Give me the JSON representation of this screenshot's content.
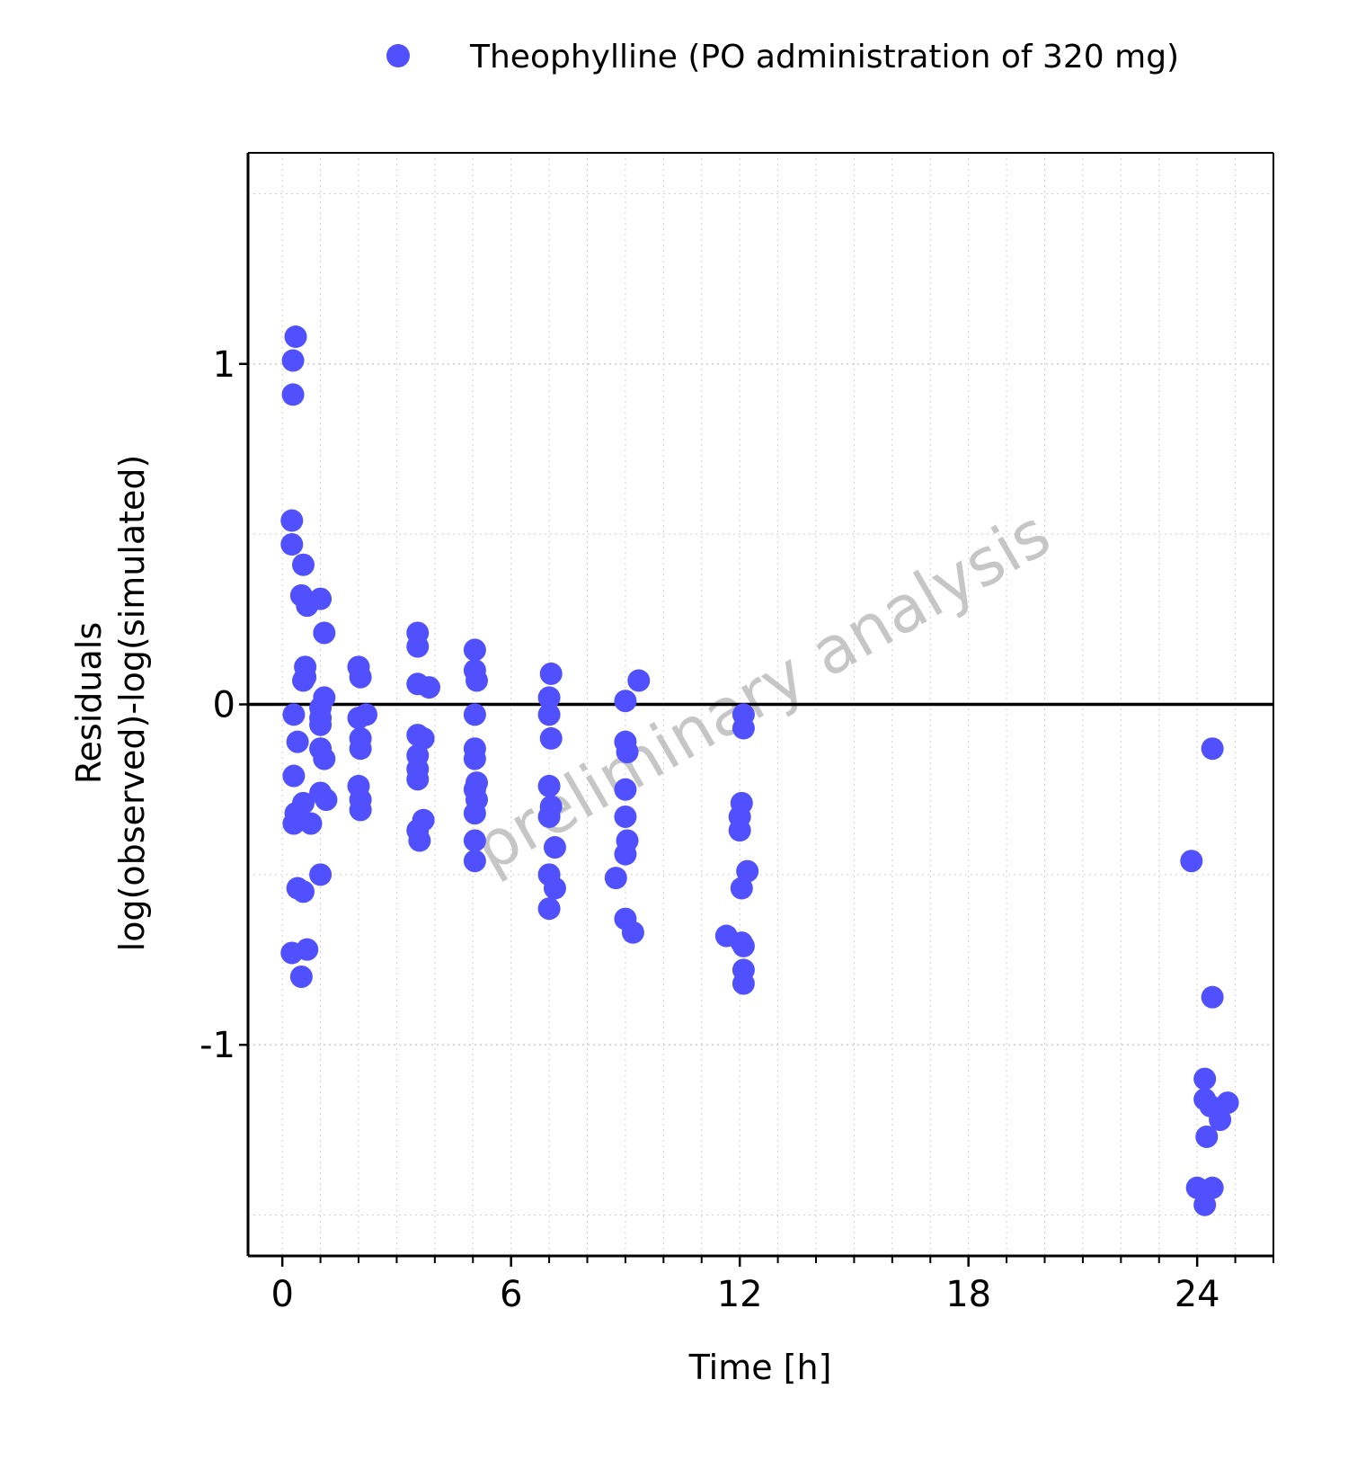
{
  "legend": {
    "label": "Theophylline (PO administration of 320 mg)",
    "position": "top-center"
  },
  "watermark": "preliminary analysis",
  "colors": {
    "marker": "#5050ff",
    "grid": "#d0d0d0",
    "axis": "#000000",
    "zero_line": "#000000"
  },
  "chart_data": {
    "type": "scatter",
    "xlabel": "Time [h]",
    "ylabel_lines": [
      "Residuals",
      "log(observed)-log(simulated)"
    ],
    "xlim": [
      -0.9,
      26.0
    ],
    "ylim": [
      -1.62,
      1.62
    ],
    "xticks": [
      0,
      6,
      12,
      18,
      24
    ],
    "yticks": [
      -1,
      0,
      1
    ],
    "xminor_step": 1,
    "yminor_step": 0.5,
    "grid": true,
    "reference_line_y": 0,
    "series": [
      {
        "name": "Theophylline (PO administration of 320 mg)",
        "points": [
          [
            0.35,
            1.08
          ],
          [
            0.28,
            1.01
          ],
          [
            0.28,
            0.91
          ],
          [
            0.25,
            0.54
          ],
          [
            0.25,
            0.47
          ],
          [
            0.55,
            0.41
          ],
          [
            0.5,
            0.32
          ],
          [
            0.65,
            0.29
          ],
          [
            1.0,
            0.31
          ],
          [
            1.1,
            0.21
          ],
          [
            0.6,
            0.11
          ],
          [
            0.6,
            0.08
          ],
          [
            0.55,
            0.07
          ],
          [
            1.1,
            0.02
          ],
          [
            1.0,
            -0.01
          ],
          [
            1.0,
            -0.04
          ],
          [
            1.0,
            -0.06
          ],
          [
            0.3,
            -0.03
          ],
          [
            0.4,
            -0.11
          ],
          [
            1.0,
            -0.13
          ],
          [
            1.1,
            -0.16
          ],
          [
            0.3,
            -0.21
          ],
          [
            1.0,
            -0.26
          ],
          [
            1.15,
            -0.28
          ],
          [
            0.55,
            -0.29
          ],
          [
            0.35,
            -0.32
          ],
          [
            0.3,
            -0.35
          ],
          [
            0.75,
            -0.35
          ],
          [
            1.0,
            -0.5
          ],
          [
            0.4,
            -0.54
          ],
          [
            0.55,
            -0.55
          ],
          [
            0.25,
            -0.73
          ],
          [
            0.65,
            -0.72
          ],
          [
            0.5,
            -0.8
          ],
          [
            2.0,
            0.11
          ],
          [
            2.05,
            0.08
          ],
          [
            2.2,
            -0.03
          ],
          [
            2.0,
            -0.04
          ],
          [
            2.05,
            -0.1
          ],
          [
            2.05,
            -0.13
          ],
          [
            2.0,
            -0.24
          ],
          [
            2.05,
            -0.28
          ],
          [
            2.05,
            -0.31
          ],
          [
            3.55,
            0.21
          ],
          [
            3.55,
            0.17
          ],
          [
            3.55,
            0.06
          ],
          [
            3.85,
            0.05
          ],
          [
            3.55,
            -0.09
          ],
          [
            3.7,
            -0.1
          ],
          [
            3.55,
            -0.15
          ],
          [
            3.55,
            -0.19
          ],
          [
            3.55,
            -0.22
          ],
          [
            3.7,
            -0.34
          ],
          [
            3.55,
            -0.37
          ],
          [
            3.6,
            -0.4
          ],
          [
            5.05,
            0.16
          ],
          [
            5.05,
            0.1
          ],
          [
            5.1,
            0.07
          ],
          [
            5.05,
            -0.03
          ],
          [
            5.05,
            -0.13
          ],
          [
            5.05,
            -0.16
          ],
          [
            5.1,
            -0.23
          ],
          [
            5.05,
            -0.25
          ],
          [
            5.1,
            -0.28
          ],
          [
            5.05,
            -0.32
          ],
          [
            5.05,
            -0.4
          ],
          [
            5.05,
            -0.46
          ],
          [
            7.05,
            0.09
          ],
          [
            7.0,
            0.02
          ],
          [
            7.0,
            -0.03
          ],
          [
            7.05,
            -0.1
          ],
          [
            7.0,
            -0.24
          ],
          [
            7.05,
            -0.3
          ],
          [
            7.0,
            -0.33
          ],
          [
            7.15,
            -0.42
          ],
          [
            7.0,
            -0.5
          ],
          [
            7.15,
            -0.54
          ],
          [
            7.0,
            -0.6
          ],
          [
            8.75,
            -0.51
          ],
          [
            9.0,
            0.01
          ],
          [
            9.35,
            0.07
          ],
          [
            9.0,
            -0.11
          ],
          [
            9.05,
            -0.14
          ],
          [
            9.0,
            -0.25
          ],
          [
            9.0,
            -0.33
          ],
          [
            9.05,
            -0.4
          ],
          [
            9.0,
            -0.44
          ],
          [
            9.0,
            -0.63
          ],
          [
            9.2,
            -0.67
          ],
          [
            11.65,
            -0.68
          ],
          [
            12.1,
            -0.03
          ],
          [
            12.1,
            -0.07
          ],
          [
            12.05,
            -0.29
          ],
          [
            12.0,
            -0.33
          ],
          [
            12.0,
            -0.37
          ],
          [
            12.2,
            -0.49
          ],
          [
            12.05,
            -0.54
          ],
          [
            12.05,
            -0.7
          ],
          [
            12.1,
            -0.71
          ],
          [
            12.1,
            -0.78
          ],
          [
            12.1,
            -0.82
          ],
          [
            23.85,
            -0.46
          ],
          [
            24.4,
            -0.13
          ],
          [
            24.4,
            -0.86
          ],
          [
            24.2,
            -1.1
          ],
          [
            24.2,
            -1.16
          ],
          [
            24.35,
            -1.18
          ],
          [
            24.6,
            -1.22
          ],
          [
            24.8,
            -1.17
          ],
          [
            24.25,
            -1.27
          ],
          [
            24.0,
            -1.42
          ],
          [
            24.4,
            -1.42
          ],
          [
            24.2,
            -1.47
          ]
        ]
      }
    ]
  }
}
